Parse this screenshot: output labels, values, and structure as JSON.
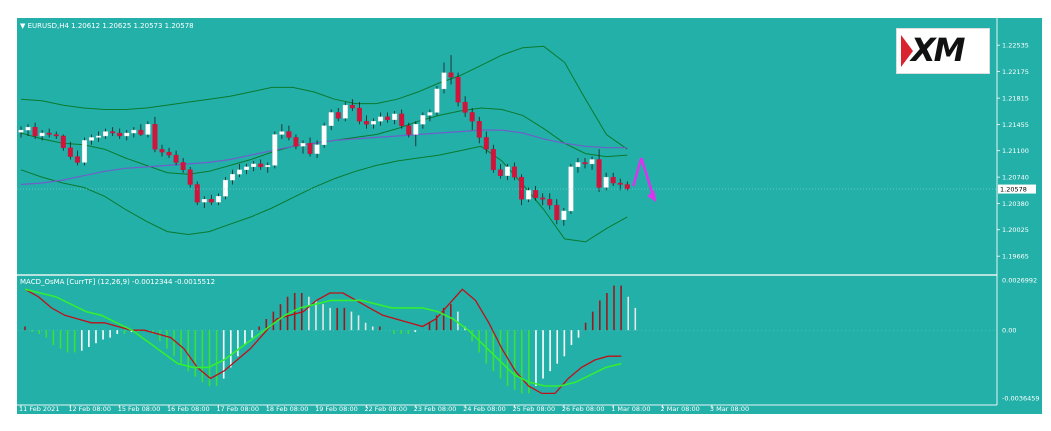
{
  "header": {
    "symbol_line": "EURUSD,H4  1.20612 1.20625 1.20573 1.20578",
    "macd_line": "MACD_OsMA [CurrTF] (12,26,9) -0.0012344 -0.0015512"
  },
  "logo": {
    "text": "XM"
  },
  "colors": {
    "background": "#22b0a8",
    "bull_candle": "#ffffff",
    "bear_candle": "#d0143c",
    "bollinger": "#0a7a2e",
    "moving_average": "#6f5fc8",
    "macd_line": "#c01018",
    "signal_line": "#33ee33",
    "forecast_arrow": "#e030f0"
  },
  "chart_data": [
    {
      "type": "candlestick",
      "title": "EURUSD,H4",
      "ylim": [
        1.1945,
        1.2285
      ],
      "y_ticks": [
        "1.22535",
        "1.22175",
        "1.21815",
        "1.21455",
        "1.21100",
        "1.20740",
        "1.20380",
        "1.20025",
        "1.19665"
      ],
      "y_tick_values": [
        1.22535,
        1.22175,
        1.21815,
        1.21455,
        1.211,
        1.2074,
        1.2038,
        1.20025,
        1.19665
      ],
      "current_price_label": "1.20578",
      "current_price": 1.20578,
      "x_labels": [
        "11 Feb 2021",
        "12 Feb 08:00",
        "15 Feb 08:00",
        "16 Feb 08:00",
        "17 Feb 08:00",
        "18 Feb 08:00",
        "19 Feb 08:00",
        "22 Feb 08:00",
        "23 Feb 08:00",
        "24 Feb 08:00",
        "25 Feb 08:00",
        "26 Feb 08:00",
        "1 Mar 08:00",
        "2 Mar 08:00",
        "3 Mar 08:00"
      ],
      "x_label_candle_index": [
        0,
        7,
        14,
        21,
        28,
        35,
        42,
        49,
        56,
        63,
        70,
        77,
        84,
        91,
        98
      ],
      "candles": [
        {
          "o": 1.2135,
          "h": 1.2143,
          "l": 1.2128,
          "c": 1.2138
        },
        {
          "o": 1.2138,
          "h": 1.2146,
          "l": 1.213,
          "c": 1.2142
        },
        {
          "o": 1.2142,
          "h": 1.2148,
          "l": 1.2126,
          "c": 1.213
        },
        {
          "o": 1.213,
          "h": 1.2138,
          "l": 1.2124,
          "c": 1.2134
        },
        {
          "o": 1.2134,
          "h": 1.214,
          "l": 1.2128,
          "c": 1.2132
        },
        {
          "o": 1.2132,
          "h": 1.2136,
          "l": 1.2126,
          "c": 1.213
        },
        {
          "o": 1.213,
          "h": 1.2132,
          "l": 1.211,
          "c": 1.2114
        },
        {
          "o": 1.2114,
          "h": 1.2122,
          "l": 1.2098,
          "c": 1.2102
        },
        {
          "o": 1.2102,
          "h": 1.211,
          "l": 1.209,
          "c": 1.2094
        },
        {
          "o": 1.2094,
          "h": 1.2128,
          "l": 1.209,
          "c": 1.2124
        },
        {
          "o": 1.2124,
          "h": 1.2132,
          "l": 1.2118,
          "c": 1.2128
        },
        {
          "o": 1.2128,
          "h": 1.2136,
          "l": 1.2122,
          "c": 1.213
        },
        {
          "o": 1.213,
          "h": 1.214,
          "l": 1.2126,
          "c": 1.2136
        },
        {
          "o": 1.2136,
          "h": 1.2142,
          "l": 1.213,
          "c": 1.2134
        },
        {
          "o": 1.2134,
          "h": 1.214,
          "l": 1.2126,
          "c": 1.213
        },
        {
          "o": 1.213,
          "h": 1.2138,
          "l": 1.2124,
          "c": 1.2134
        },
        {
          "o": 1.2134,
          "h": 1.2142,
          "l": 1.2128,
          "c": 1.2138
        },
        {
          "o": 1.2138,
          "h": 1.2146,
          "l": 1.213,
          "c": 1.2132
        },
        {
          "o": 1.2132,
          "h": 1.215,
          "l": 1.2128,
          "c": 1.2146
        },
        {
          "o": 1.2146,
          "h": 1.2156,
          "l": 1.2108,
          "c": 1.2112
        },
        {
          "o": 1.2112,
          "h": 1.2118,
          "l": 1.2102,
          "c": 1.2108
        },
        {
          "o": 1.2108,
          "h": 1.2114,
          "l": 1.21,
          "c": 1.2104
        },
        {
          "o": 1.2104,
          "h": 1.211,
          "l": 1.209,
          "c": 1.2094
        },
        {
          "o": 1.2094,
          "h": 1.21,
          "l": 1.208,
          "c": 1.2084
        },
        {
          "o": 1.2084,
          "h": 1.2088,
          "l": 1.206,
          "c": 1.2064
        },
        {
          "o": 1.2064,
          "h": 1.2068,
          "l": 1.2036,
          "c": 1.204
        },
        {
          "o": 1.204,
          "h": 1.2048,
          "l": 1.2032,
          "c": 1.2044
        },
        {
          "o": 1.2044,
          "h": 1.205,
          "l": 1.2036,
          "c": 1.204
        },
        {
          "o": 1.204,
          "h": 1.2052,
          "l": 1.2036,
          "c": 1.2048
        },
        {
          "o": 1.2048,
          "h": 1.2074,
          "l": 1.2044,
          "c": 1.207
        },
        {
          "o": 1.207,
          "h": 1.2084,
          "l": 1.2064,
          "c": 1.2078
        },
        {
          "o": 1.2078,
          "h": 1.2092,
          "l": 1.2074,
          "c": 1.2084
        },
        {
          "o": 1.2084,
          "h": 1.2092,
          "l": 1.2078,
          "c": 1.2088
        },
        {
          "o": 1.2088,
          "h": 1.2096,
          "l": 1.2082,
          "c": 1.2092
        },
        {
          "o": 1.2092,
          "h": 1.2098,
          "l": 1.2084,
          "c": 1.2088
        },
        {
          "o": 1.2088,
          "h": 1.2094,
          "l": 1.208,
          "c": 1.209
        },
        {
          "o": 1.209,
          "h": 1.2136,
          "l": 1.2086,
          "c": 1.2132
        },
        {
          "o": 1.2132,
          "h": 1.2146,
          "l": 1.2126,
          "c": 1.2136
        },
        {
          "o": 1.2136,
          "h": 1.2144,
          "l": 1.2124,
          "c": 1.2128
        },
        {
          "o": 1.2128,
          "h": 1.2132,
          "l": 1.2112,
          "c": 1.2116
        },
        {
          "o": 1.2116,
          "h": 1.2124,
          "l": 1.2106,
          "c": 1.212
        },
        {
          "o": 1.212,
          "h": 1.2128,
          "l": 1.2102,
          "c": 1.2106
        },
        {
          "o": 1.2106,
          "h": 1.2124,
          "l": 1.21,
          "c": 1.2118
        },
        {
          "o": 1.2118,
          "h": 1.2148,
          "l": 1.2114,
          "c": 1.2144
        },
        {
          "o": 1.2144,
          "h": 1.2166,
          "l": 1.2138,
          "c": 1.2162
        },
        {
          "o": 1.2162,
          "h": 1.2168,
          "l": 1.215,
          "c": 1.2154
        },
        {
          "o": 1.2154,
          "h": 1.2176,
          "l": 1.215,
          "c": 1.2172
        },
        {
          "o": 1.2172,
          "h": 1.218,
          "l": 1.2164,
          "c": 1.2168
        },
        {
          "o": 1.2168,
          "h": 1.2176,
          "l": 1.2146,
          "c": 1.215
        },
        {
          "o": 1.215,
          "h": 1.2158,
          "l": 1.214,
          "c": 1.2146
        },
        {
          "o": 1.2146,
          "h": 1.2154,
          "l": 1.214,
          "c": 1.215
        },
        {
          "o": 1.215,
          "h": 1.2162,
          "l": 1.2144,
          "c": 1.2156
        },
        {
          "o": 1.2156,
          "h": 1.2162,
          "l": 1.2148,
          "c": 1.2152
        },
        {
          "o": 1.2152,
          "h": 1.2164,
          "l": 1.2146,
          "c": 1.216
        },
        {
          "o": 1.216,
          "h": 1.2166,
          "l": 1.214,
          "c": 1.2144
        },
        {
          "o": 1.2144,
          "h": 1.2148,
          "l": 1.2128,
          "c": 1.2132
        },
        {
          "o": 1.2132,
          "h": 1.215,
          "l": 1.2116,
          "c": 1.2146
        },
        {
          "o": 1.2146,
          "h": 1.2162,
          "l": 1.214,
          "c": 1.2158
        },
        {
          "o": 1.2158,
          "h": 1.2166,
          "l": 1.215,
          "c": 1.2162
        },
        {
          "o": 1.2162,
          "h": 1.2198,
          "l": 1.2158,
          "c": 1.2194
        },
        {
          "o": 1.2194,
          "h": 1.223,
          "l": 1.2188,
          "c": 1.2216
        },
        {
          "o": 1.2216,
          "h": 1.224,
          "l": 1.22,
          "c": 1.221
        },
        {
          "o": 1.221,
          "h": 1.2216,
          "l": 1.217,
          "c": 1.2176
        },
        {
          "o": 1.2176,
          "h": 1.2184,
          "l": 1.2156,
          "c": 1.2162
        },
        {
          "o": 1.2162,
          "h": 1.2168,
          "l": 1.2138,
          "c": 1.215
        },
        {
          "o": 1.215,
          "h": 1.2156,
          "l": 1.212,
          "c": 1.2128
        },
        {
          "o": 1.2128,
          "h": 1.2136,
          "l": 1.2106,
          "c": 1.2112
        },
        {
          "o": 1.2112,
          "h": 1.2118,
          "l": 1.208,
          "c": 1.2084
        },
        {
          "o": 1.2084,
          "h": 1.2092,
          "l": 1.2072,
          "c": 1.2076
        },
        {
          "o": 1.2076,
          "h": 1.2092,
          "l": 1.207,
          "c": 1.2088
        },
        {
          "o": 1.2088,
          "h": 1.2094,
          "l": 1.207,
          "c": 1.2074
        },
        {
          "o": 1.2074,
          "h": 1.2078,
          "l": 1.2036,
          "c": 1.2044
        },
        {
          "o": 1.2044,
          "h": 1.206,
          "l": 1.204,
          "c": 1.2056
        },
        {
          "o": 1.2056,
          "h": 1.2062,
          "l": 1.2042,
          "c": 1.2046
        },
        {
          "o": 1.2046,
          "h": 1.2052,
          "l": 1.2036,
          "c": 1.2044
        },
        {
          "o": 1.2044,
          "h": 1.2052,
          "l": 1.203,
          "c": 1.2036
        },
        {
          "o": 1.2036,
          "h": 1.2044,
          "l": 1.201,
          "c": 1.2016
        },
        {
          "o": 1.2016,
          "h": 1.2032,
          "l": 1.2008,
          "c": 1.2028
        },
        {
          "o": 1.2028,
          "h": 1.2092,
          "l": 1.2024,
          "c": 1.2088
        },
        {
          "o": 1.2088,
          "h": 1.21,
          "l": 1.208,
          "c": 1.2094
        },
        {
          "o": 1.2094,
          "h": 1.21,
          "l": 1.2086,
          "c": 1.2092
        },
        {
          "o": 1.2092,
          "h": 1.2102,
          "l": 1.2084,
          "c": 1.2098
        },
        {
          "o": 1.2098,
          "h": 1.2112,
          "l": 1.2054,
          "c": 1.206
        },
        {
          "o": 1.206,
          "h": 1.208,
          "l": 1.2056,
          "c": 1.2074
        },
        {
          "o": 1.2074,
          "h": 1.208,
          "l": 1.2062,
          "c": 1.2066
        },
        {
          "o": 1.2066,
          "h": 1.2072,
          "l": 1.2056,
          "c": 1.2064
        },
        {
          "o": 1.2064,
          "h": 1.2068,
          "l": 1.2056,
          "c": 1.2058
        }
      ],
      "bollinger_upper": [
        1.218,
        1.2178,
        1.2172,
        1.2168,
        1.2166,
        1.2166,
        1.2168,
        1.2172,
        1.2176,
        1.218,
        1.2184,
        1.219,
        1.2196,
        1.2196,
        1.219,
        1.218,
        1.2174,
        1.2174,
        1.218,
        1.219,
        1.2202,
        1.2212,
        1.2226,
        1.224,
        1.225,
        1.2252,
        1.223,
        1.218,
        1.2132,
        1.2112
      ],
      "bollinger_middle": [
        1.2134,
        1.2126,
        1.212,
        1.2118,
        1.2112,
        1.21,
        1.209,
        1.208,
        1.2078,
        1.2082,
        1.209,
        1.2098,
        1.2108,
        1.2116,
        1.212,
        1.2124,
        1.2128,
        1.2132,
        1.214,
        1.215,
        1.2158,
        1.2164,
        1.2168,
        1.2166,
        1.2158,
        1.214,
        1.212,
        1.2106,
        1.2102,
        1.2104
      ],
      "bollinger_lower": [
        1.2084,
        1.2074,
        1.2066,
        1.206,
        1.2048,
        1.203,
        1.2014,
        1.2,
        1.1996,
        1.2,
        1.201,
        1.202,
        1.2032,
        1.2046,
        1.206,
        1.2072,
        1.2082,
        1.209,
        1.2096,
        1.21,
        1.2104,
        1.211,
        1.2116,
        1.2096,
        1.2064,
        1.203,
        1.199,
        1.1986,
        1.2004,
        1.202
      ],
      "moving_average": [
        1.2064,
        1.2066,
        1.207,
        1.2076,
        1.2082,
        1.2086,
        1.2088,
        1.209,
        1.2092,
        1.2094,
        1.2098,
        1.2104,
        1.211,
        1.2116,
        1.212,
        1.2124,
        1.2126,
        1.2128,
        1.213,
        1.2132,
        1.2134,
        1.2136,
        1.2138,
        1.2138,
        1.2134,
        1.2126,
        1.212,
        1.2116,
        1.2114,
        1.2114
      ],
      "forecast_arrow": [
        1.2062,
        1.21,
        1.204
      ]
    },
    {
      "type": "macd",
      "title": "MACD_OsMA [CurrTF] (12,26,9)",
      "values_shown": [
        "-0.0012344",
        "-0.0015512"
      ],
      "ylim": [
        -0.0036459,
        0.0026992
      ],
      "y_ticks": [
        "0.0026992",
        "0.00",
        "-0.0036459"
      ],
      "y_tick_values": [
        0.0026992,
        0.0,
        -0.0036459
      ],
      "histogram": [
        0.0002,
        -0.0001,
        -0.0002,
        -0.0004,
        -0.0008,
        -0.001,
        -0.0012,
        -0.0012,
        -0.0011,
        -0.0009,
        -0.0007,
        -0.0005,
        -0.0004,
        -0.0002,
        -0.0002,
        -0.0001,
        -0.0001,
        0.0,
        -0.0002,
        -0.0006,
        -0.001,
        -0.0014,
        -0.0018,
        -0.0022,
        -0.0025,
        -0.0028,
        -0.003,
        -0.003,
        -0.0026,
        -0.002,
        -0.0014,
        -0.0008,
        -0.0004,
        0.0002,
        0.0006,
        0.001,
        0.0014,
        0.0018,
        0.002,
        0.002,
        0.0018,
        0.0016,
        0.0014,
        0.0012,
        0.0012,
        0.0012,
        0.001,
        0.0008,
        0.0004,
        0.0002,
        0.0002,
        0.0,
        -0.0002,
        -0.0002,
        -0.0002,
        -0.0001,
        0.0,
        0.0004,
        0.0008,
        0.0012,
        0.0014,
        0.001,
        0.0002,
        -0.0006,
        -0.0012,
        -0.0018,
        -0.0022,
        -0.0026,
        -0.003,
        -0.0032,
        -0.0034,
        -0.0034,
        -0.003,
        -0.0026,
        -0.0022,
        -0.0018,
        -0.0014,
        -0.0008,
        -0.0004,
        0.0004,
        0.001,
        0.0016,
        0.002,
        0.0024,
        0.0024,
        0.0018,
        0.0012
      ],
      "macd_line": [
        0.0022,
        0.0018,
        0.0012,
        0.0008,
        0.0006,
        0.0004,
        0.0004,
        0.0002,
        0.0,
        0.0,
        -0.0002,
        -0.0004,
        -0.001,
        -0.002,
        -0.0026,
        -0.0022,
        -0.0016,
        -0.001,
        -0.0002,
        0.0006,
        0.0008,
        0.001,
        0.0016,
        0.002,
        0.002,
        0.0016,
        0.0012,
        0.0008,
        0.0006,
        0.0004,
        0.0002,
        0.0006,
        0.0014,
        0.0022,
        0.0016,
        0.0004,
        -0.001,
        -0.0022,
        -0.003,
        -0.0034,
        -0.0034,
        -0.0026,
        -0.002,
        -0.0016,
        -0.0014,
        -0.0014
      ],
      "signal_line": [
        0.0022,
        0.002,
        0.0018,
        0.0014,
        0.001,
        0.0008,
        0.0004,
        0.0,
        -0.0006,
        -0.0012,
        -0.0018,
        -0.002,
        -0.002,
        -0.0016,
        -0.001,
        -0.0004,
        0.0002,
        0.0008,
        0.0012,
        0.0014,
        0.0016,
        0.0016,
        0.0016,
        0.0014,
        0.0012,
        0.0012,
        0.0012,
        0.001,
        0.0006,
        0.0,
        -0.0008,
        -0.0016,
        -0.0024,
        -0.0028,
        -0.003,
        -0.003,
        -0.0028,
        -0.0024,
        -0.002,
        -0.0018
      ]
    }
  ]
}
